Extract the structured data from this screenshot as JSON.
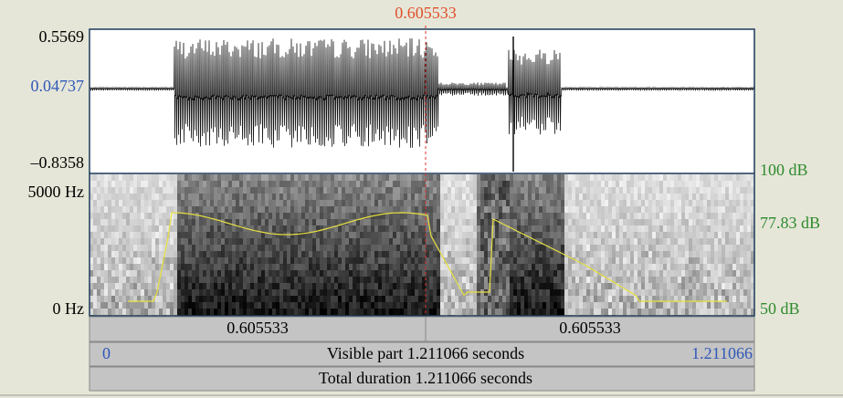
{
  "cursor": "0.605533",
  "waveform": {
    "max": "0.5569",
    "mid": "0.04737",
    "min": "–0.8358"
  },
  "spectrogram": {
    "freq_max": "5000 Hz",
    "freq_min": "0 Hz"
  },
  "intensity": {
    "max": "100 dB",
    "mid": "77.83 dB",
    "min": "50 dB"
  },
  "selection": {
    "left": "0.605533",
    "right": "0.605533"
  },
  "visible": {
    "start": "0",
    "label": "Visible part 1.211066 seconds",
    "end": "1.211066"
  },
  "total": {
    "label": "Total duration 1.211066 seconds"
  }
}
